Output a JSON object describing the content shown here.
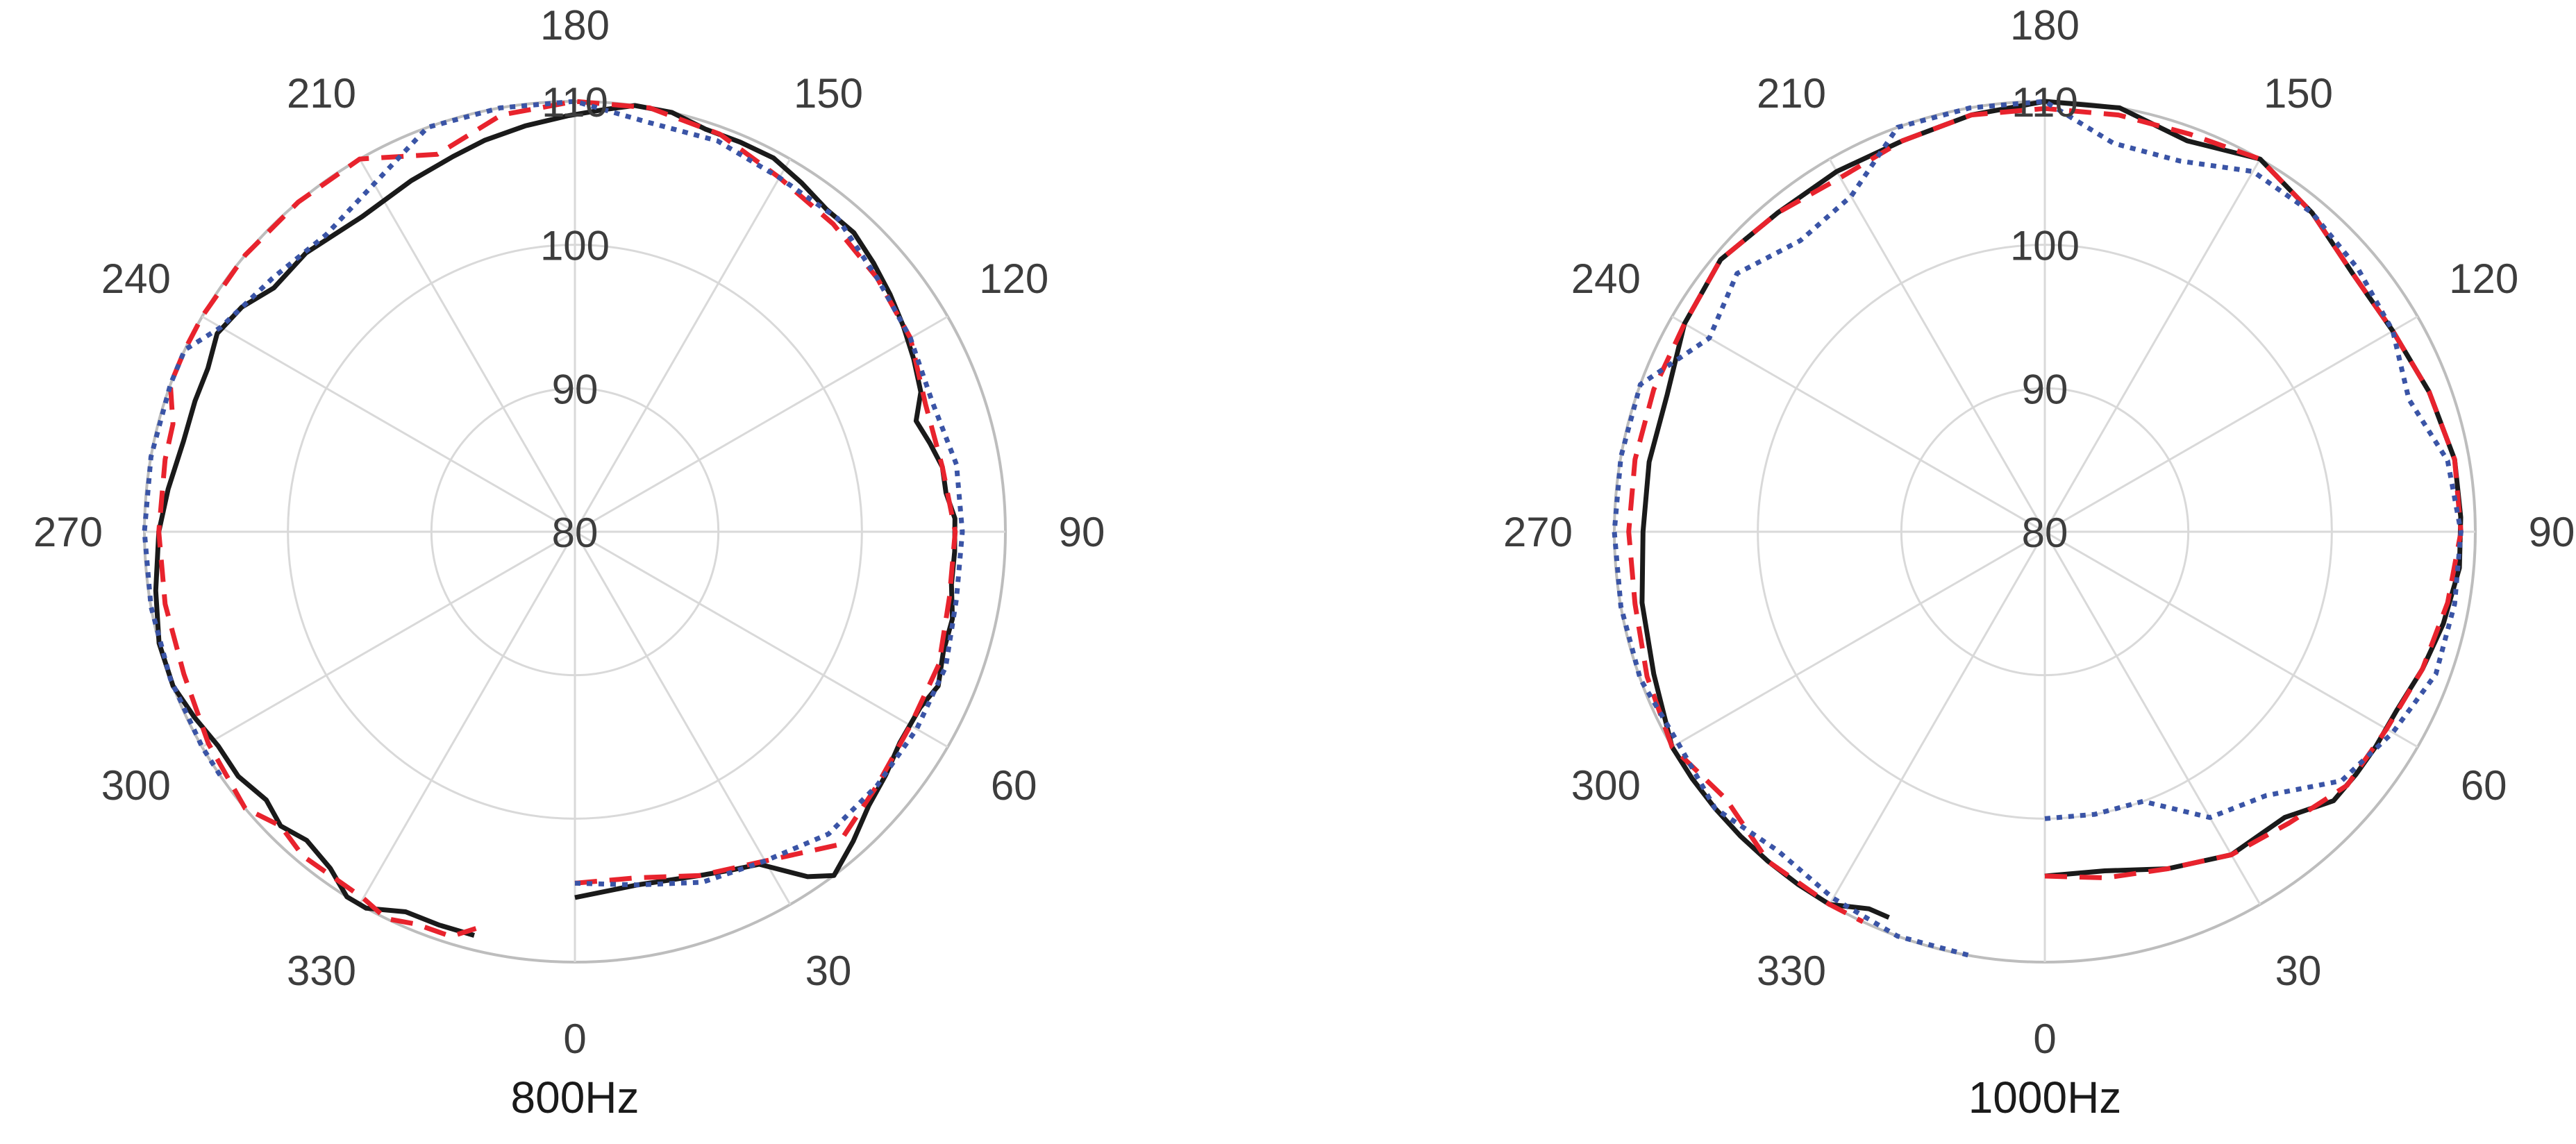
{
  "chart_data": [
    {
      "type": "line",
      "projection": "polar",
      "title": "800Hz",
      "angle_direction": "counterclockwise",
      "zero_angle_position": "bottom",
      "r_range": [
        80,
        110
      ],
      "radial_ticks": [
        "80",
        "90",
        "100",
        "110"
      ],
      "angle_ticks": [
        "0",
        "30",
        "60",
        "90",
        "120",
        "150",
        "180",
        "210",
        "240",
        "270",
        "300",
        "330"
      ],
      "grid": true,
      "legend": "none",
      "series": [
        {
          "color": "#1a1a1a",
          "dash": "solid",
          "points": [
            [
              0,
              105.5
            ],
            [
              10,
              105
            ],
            [
              20,
              105.5
            ],
            [
              25,
              106
            ],
            [
              29,
              106.5
            ],
            [
              34,
              109
            ],
            [
              37,
              110
            ],
            [
              42,
              109
            ],
            [
              47,
              108
            ],
            [
              52,
              107.5
            ],
            [
              57,
              107
            ],
            [
              63,
              107
            ],
            [
              67,
              107.5
            ],
            [
              72,
              107
            ],
            [
              77,
              107
            ],
            [
              82,
              106.5
            ],
            [
              87,
              106.5
            ],
            [
              92,
              106.5
            ],
            [
              96,
              106
            ],
            [
              100,
              106
            ],
            [
              104,
              105.5
            ],
            [
              108,
              105
            ],
            [
              112,
              106
            ],
            [
              117,
              106.5
            ],
            [
              122,
              107
            ],
            [
              127,
              107.5
            ],
            [
              132,
              108
            ],
            [
              137,
              108.5
            ],
            [
              142,
              108.5
            ],
            [
              147,
              109
            ],
            [
              152,
              109.5
            ],
            [
              157,
              109.5
            ],
            [
              162,
              109.5
            ],
            [
              167,
              110
            ],
            [
              172,
              110
            ],
            [
              176,
              109.5
            ],
            [
              181,
              109
            ],
            [
              187,
              108.5
            ],
            [
              193,
              108
            ],
            [
              198,
              107.5
            ],
            [
              205,
              107
            ],
            [
              214,
              106.5
            ],
            [
              224,
              107
            ],
            [
              231,
              107
            ],
            [
              236,
              108
            ],
            [
              241,
              108.5
            ],
            [
              246,
              108
            ],
            [
              251,
              108
            ],
            [
              257,
              108
            ],
            [
              264,
              108.5
            ],
            [
              270,
              109
            ],
            [
              278,
              109.5
            ],
            [
              285,
              110
            ],
            [
              291,
              110
            ],
            [
              296,
              109.5
            ],
            [
              301,
              109
            ],
            [
              306,
              109
            ],
            [
              311,
              108.5
            ],
            [
              315,
              109
            ],
            [
              319,
              108.5
            ],
            [
              324,
              109
            ],
            [
              328,
              110
            ],
            [
              331,
              110
            ],
            [
              336,
              109
            ],
            [
              341,
              109
            ],
            [
              346,
              109
            ]
          ]
        },
        {
          "color": "#e8232d",
          "dash": "dashed",
          "points": [
            [
              0,
              104.5
            ],
            [
              10,
              104.5
            ],
            [
              20,
              105.5
            ],
            [
              30,
              106.5
            ],
            [
              40,
              108.5
            ],
            [
              50,
              107.5
            ],
            [
              60,
              107
            ],
            [
              70,
              107
            ],
            [
              80,
              106.5
            ],
            [
              90,
              106.5
            ],
            [
              100,
              106
            ],
            [
              110,
              106
            ],
            [
              120,
              107
            ],
            [
              130,
              107.5
            ],
            [
              140,
              108
            ],
            [
              150,
              108.5
            ],
            [
              160,
              109.5
            ],
            [
              170,
              110
            ],
            [
              180,
              110.5
            ],
            [
              190,
              109.5
            ],
            [
              200,
              108
            ],
            [
              210,
              110
            ],
            [
              220,
              110
            ],
            [
              230,
              110
            ],
            [
              240,
              110
            ],
            [
              245,
              110
            ],
            [
              250,
              110
            ],
            [
              255,
              109
            ],
            [
              260,
              109
            ],
            [
              270,
              109
            ],
            [
              280,
              109
            ],
            [
              290,
              109
            ],
            [
              300,
              109.5
            ],
            [
              310,
              110
            ],
            [
              315,
              109
            ],
            [
              320,
              109.5
            ],
            [
              330,
              109.5
            ],
            [
              334,
              110
            ],
            [
              338,
              109.5
            ],
            [
              343,
              109.5
            ],
            [
              346,
              108.5
            ]
          ]
        },
        {
          "color": "#3a54a6",
          "dash": "dotted",
          "points": [
            [
              0,
              104.5
            ],
            [
              10,
              105
            ],
            [
              20,
              106
            ],
            [
              30,
              106.5
            ],
            [
              40,
              107.5
            ],
            [
              50,
              107.5
            ],
            [
              60,
              107.5
            ],
            [
              70,
              107.5
            ],
            [
              80,
              107
            ],
            [
              90,
              107
            ],
            [
              100,
              107
            ],
            [
              110,
              106.5
            ],
            [
              120,
              107
            ],
            [
              130,
              107.5
            ],
            [
              140,
              108.5
            ],
            [
              150,
              108.5
            ],
            [
              160,
              109
            ],
            [
              170,
              109
            ],
            [
              180,
              110
            ],
            [
              190,
              110
            ],
            [
              200,
              110
            ],
            [
              210,
              108
            ],
            [
              220,
              107
            ],
            [
              230,
              107.5
            ],
            [
              240,
              108.5
            ],
            [
              245,
              110
            ],
            [
              250,
              110
            ],
            [
              260,
              110
            ],
            [
              270,
              110
            ],
            [
              280,
              110
            ],
            [
              290,
              110
            ],
            [
              300,
              110
            ],
            [
              305,
              110
            ]
          ]
        }
      ]
    },
    {
      "type": "line",
      "projection": "polar",
      "title": "1000Hz",
      "angle_direction": "counterclockwise",
      "zero_angle_position": "bottom",
      "r_range": [
        80,
        110
      ],
      "radial_ticks": [
        "80",
        "90",
        "100",
        "110"
      ],
      "angle_ticks": [
        "0",
        "30",
        "60",
        "90",
        "120",
        "150",
        "180",
        "210",
        "240",
        "270",
        "300",
        "330"
      ],
      "grid": true,
      "legend": "none",
      "series": [
        {
          "color": "#1a1a1a",
          "dash": "solid",
          "points": [
            [
              0,
              104
            ],
            [
              10,
              104
            ],
            [
              20,
              105
            ],
            [
              30,
              106
            ],
            [
              40,
              106
            ],
            [
              47,
              107.5
            ],
            [
              52,
              107.5
            ],
            [
              57,
              107.5
            ],
            [
              63,
              107.5
            ],
            [
              70,
              108
            ],
            [
              77,
              108.5
            ],
            [
              85,
              109
            ],
            [
              92,
              109
            ],
            [
              100,
              109
            ],
            [
              110,
              108.5
            ],
            [
              120,
              108
            ],
            [
              130,
              108
            ],
            [
              140,
              109
            ],
            [
              150,
              110
            ],
            [
              160,
              109
            ],
            [
              170,
              110
            ],
            [
              180,
              110.5
            ],
            [
              190,
              109.5
            ],
            [
              200,
              109
            ],
            [
              210,
              109
            ],
            [
              220,
              109
            ],
            [
              230,
              109.5
            ],
            [
              240,
              109
            ],
            [
              250,
              108
            ],
            [
              260,
              108
            ],
            [
              270,
              108
            ],
            [
              280,
              108.5
            ],
            [
              290,
              109
            ],
            [
              300,
              110
            ],
            [
              305,
              110
            ],
            [
              310,
              110
            ],
            [
              315,
              110
            ],
            [
              320,
              110
            ],
            [
              325,
              110
            ],
            [
              330,
              110
            ],
            [
              335,
              109
            ],
            [
              338,
              109
            ]
          ]
        },
        {
          "color": "#e8232d",
          "dash": "dashed",
          "points": [
            [
              0,
              104
            ],
            [
              10,
              104.5
            ],
            [
              20,
              105
            ],
            [
              30,
              106
            ],
            [
              40,
              106.5
            ],
            [
              50,
              107.5
            ],
            [
              60,
              107.5
            ],
            [
              70,
              108
            ],
            [
              80,
              108.5
            ],
            [
              90,
              109
            ],
            [
              100,
              109
            ],
            [
              110,
              108.5
            ],
            [
              120,
              108
            ],
            [
              130,
              108
            ],
            [
              140,
              109
            ],
            [
              150,
              110
            ],
            [
              160,
              109.5
            ],
            [
              170,
              109.5
            ],
            [
              180,
              109.5
            ],
            [
              190,
              109.5
            ],
            [
              200,
              109
            ],
            [
              210,
              108.5
            ],
            [
              220,
              109
            ],
            [
              230,
              109.5
            ],
            [
              240,
              109
            ],
            [
              250,
              109
            ],
            [
              260,
              109
            ],
            [
              270,
              109
            ],
            [
              280,
              109
            ],
            [
              290,
              109.5
            ],
            [
              300,
              110
            ],
            [
              310,
              109
            ],
            [
              320,
              110
            ],
            [
              330,
              110
            ],
            [
              335,
              110
            ]
          ]
        },
        {
          "color": "#3a54a6",
          "dash": "dotted",
          "points": [
            [
              0,
              100
            ],
            [
              10,
              100
            ],
            [
              20,
              100
            ],
            [
              30,
              103
            ],
            [
              40,
              104
            ],
            [
              50,
              107
            ],
            [
              60,
              108
            ],
            [
              70,
              109
            ],
            [
              80,
              109
            ],
            [
              90,
              109
            ],
            [
              100,
              108.5
            ],
            [
              110,
              107
            ],
            [
              120,
              108
            ],
            [
              130,
              108.5
            ],
            [
              140,
              109
            ],
            [
              150,
              109
            ],
            [
              160,
              107.5
            ],
            [
              170,
              107.5
            ],
            [
              180,
              110
            ],
            [
              190,
              110
            ],
            [
              200,
              110
            ],
            [
              210,
              107
            ],
            [
              220,
              106.5
            ],
            [
              230,
              108
            ],
            [
              240,
              107
            ],
            [
              250,
              110
            ],
            [
              260,
              110
            ],
            [
              270,
              110
            ],
            [
              280,
              110
            ],
            [
              290,
              110
            ],
            [
              300,
              109.5
            ],
            [
              310,
              110
            ],
            [
              320,
              109
            ],
            [
              330,
              109.5
            ],
            [
              340,
              110
            ],
            [
              350,
              110
            ]
          ]
        }
      ]
    }
  ]
}
